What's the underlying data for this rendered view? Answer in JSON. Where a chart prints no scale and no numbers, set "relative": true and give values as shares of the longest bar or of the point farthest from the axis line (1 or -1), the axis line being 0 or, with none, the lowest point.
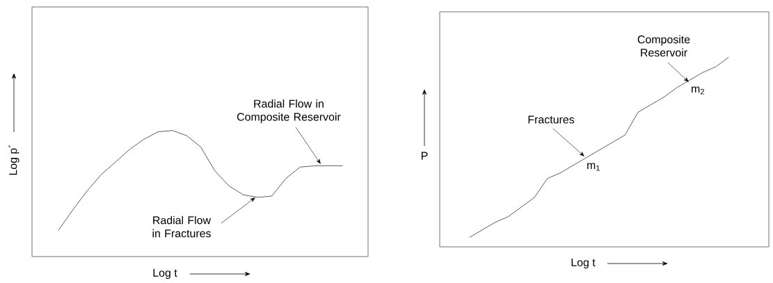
{
  "chart_data": [
    {
      "type": "line",
      "relative": true,
      "color": "#333333",
      "xlabel": "Log t",
      "ylabel": "Log p´",
      "categories": [
        null,
        null,
        null,
        null,
        null,
        null,
        null,
        null,
        null,
        null,
        null,
        null,
        null,
        null,
        null,
        null,
        null,
        null,
        null,
        null,
        null
      ],
      "values": [
        0.21,
        0.37,
        0.52,
        0.65,
        0.75,
        0.85,
        0.93,
        0.99,
        1.0,
        0.96,
        0.87,
        0.68,
        0.56,
        0.49,
        0.47,
        0.48,
        0.62,
        0.71,
        0.72,
        0.72,
        0.72
      ],
      "annotations": [
        "Radial Flow in Composite Reservoir",
        "Radial Flow in Fractures"
      ]
    },
    {
      "type": "line",
      "relative": true,
      "color": "#333333",
      "xlabel": "Log t",
      "ylabel": "P",
      "categories": [
        null,
        null,
        null,
        null,
        null,
        null,
        null,
        null,
        null,
        null,
        null,
        null,
        null,
        null,
        null,
        null,
        null,
        null,
        null,
        null,
        null
      ],
      "values": [
        0.05,
        0.09,
        0.13,
        0.16,
        0.21,
        0.26,
        0.36,
        0.39,
        0.43,
        0.47,
        0.51,
        0.55,
        0.59,
        0.71,
        0.75,
        0.79,
        0.84,
        0.88,
        0.92,
        0.95,
        1.0
      ],
      "annotations": [
        "Fractures",
        "m$_{1}$",
        "Composite Reservoir",
        "m$_{2}$"
      ]
    }
  ]
}
